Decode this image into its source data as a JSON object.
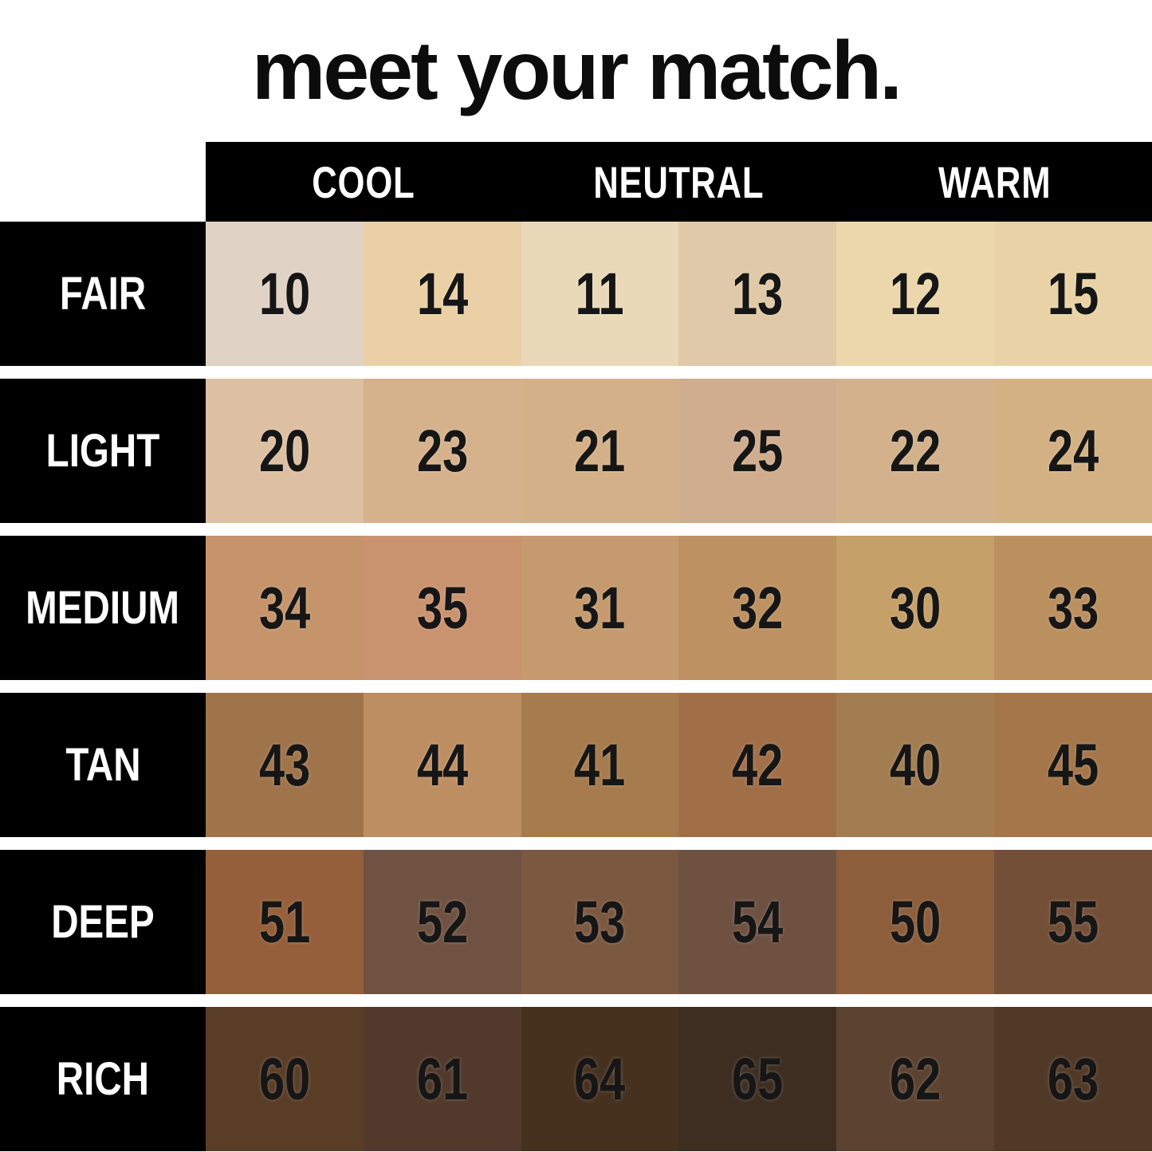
{
  "title": "meet your match.",
  "colors": {
    "background": "#ffffff",
    "bar_background": "#000000",
    "header_text": "#ffffff",
    "number_text": "#161616"
  },
  "chart_data": {
    "type": "table",
    "title": "meet your match.",
    "column_groups": [
      "COOL",
      "NEUTRAL",
      "WARM"
    ],
    "columns_per_group": 2,
    "row_labels": [
      "FAIR",
      "LIGHT",
      "MEDIUM",
      "TAN",
      "DEEP",
      "RICH"
    ],
    "rows": [
      {
        "label": "FAIR",
        "swatches": [
          {
            "number": "10",
            "color": "#e0d2c4"
          },
          {
            "number": "14",
            "color": "#ebd0a5"
          },
          {
            "number": "11",
            "color": "#ead9b8"
          },
          {
            "number": "13",
            "color": "#e0c9a8"
          },
          {
            "number": "12",
            "color": "#ecd7ac"
          },
          {
            "number": "15",
            "color": "#e9d3a6"
          }
        ]
      },
      {
        "label": "LIGHT",
        "swatches": [
          {
            "number": "20",
            "color": "#ddbfa2"
          },
          {
            "number": "23",
            "color": "#d5b28c"
          },
          {
            "number": "21",
            "color": "#d4b088"
          },
          {
            "number": "25",
            "color": "#cfad8e"
          },
          {
            "number": "22",
            "color": "#d2b18c"
          },
          {
            "number": "24",
            "color": "#d4b183"
          }
        ]
      },
      {
        "label": "MEDIUM",
        "swatches": [
          {
            "number": "34",
            "color": "#c6946b"
          },
          {
            "number": "35",
            "color": "#ca9370"
          },
          {
            "number": "31",
            "color": "#c49a6e"
          },
          {
            "number": "32",
            "color": "#bd9161"
          },
          {
            "number": "30",
            "color": "#c6a069"
          },
          {
            "number": "33",
            "color": "#bb905f"
          }
        ]
      },
      {
        "label": "TAN",
        "swatches": [
          {
            "number": "43",
            "color": "#a0744b"
          },
          {
            "number": "44",
            "color": "#bd8e62"
          },
          {
            "number": "41",
            "color": "#a67b4d"
          },
          {
            "number": "42",
            "color": "#a06f48"
          },
          {
            "number": "40",
            "color": "#a37d52"
          },
          {
            "number": "45",
            "color": "#a4764a"
          }
        ]
      },
      {
        "label": "DEEP",
        "swatches": [
          {
            "number": "51",
            "color": "#955f3b"
          },
          {
            "number": "52",
            "color": "#6f5242"
          },
          {
            "number": "53",
            "color": "#7b5840"
          },
          {
            "number": "54",
            "color": "#6f5142"
          },
          {
            "number": "50",
            "color": "#8c5e3c"
          },
          {
            "number": "55",
            "color": "#744f38"
          }
        ]
      },
      {
        "label": "RICH",
        "swatches": [
          {
            "number": "60",
            "color": "#5a3d27"
          },
          {
            "number": "61",
            "color": "#513a2b"
          },
          {
            "number": "64",
            "color": "#46311f"
          },
          {
            "number": "65",
            "color": "#3e2e22"
          },
          {
            "number": "62",
            "color": "#5c4230"
          },
          {
            "number": "63",
            "color": "#513927"
          }
        ]
      }
    ]
  }
}
